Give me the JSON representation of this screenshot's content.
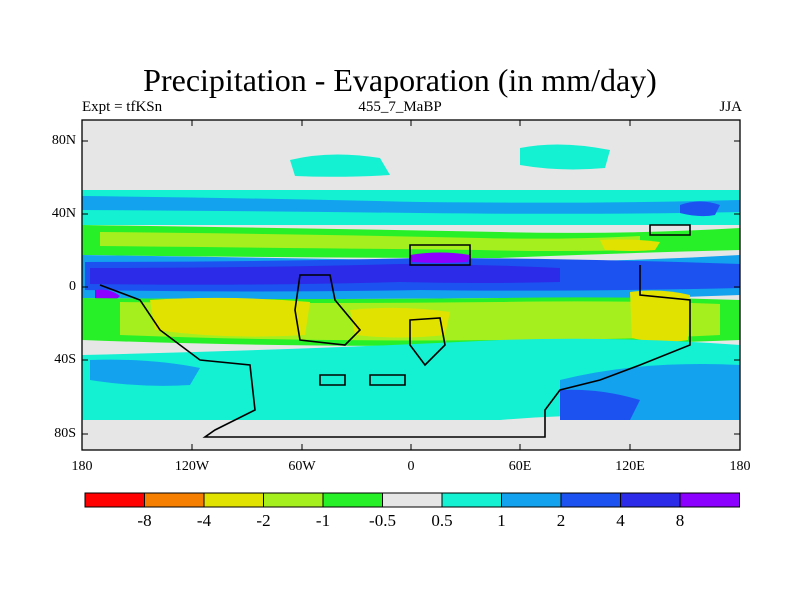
{
  "title": "Precipitation - Evaporation (in mm/day)",
  "subtitle_left": "Expt = tfKSn",
  "subtitle_center": "455_7_MaBP",
  "subtitle_right": "JJA",
  "lat_ticks": [
    "80N",
    "40N",
    "0",
    "40S",
    "80S"
  ],
  "lon_ticks": [
    "180",
    "120W",
    "60W",
    "0",
    "60E",
    "120E",
    "180"
  ],
  "colorbar": {
    "colors": [
      "#ff0000",
      "#f77f00",
      "#e2e200",
      "#a6ef1e",
      "#28f028",
      "#e6e6e6",
      "#14f0d2",
      "#12a2ee",
      "#1c52ef",
      "#2b2be8",
      "#8b00ff"
    ],
    "labels": [
      "-8",
      "-4",
      "-2",
      "-1",
      "-0.5",
      "0.5",
      "1",
      "2",
      "4",
      "8"
    ]
  }
}
